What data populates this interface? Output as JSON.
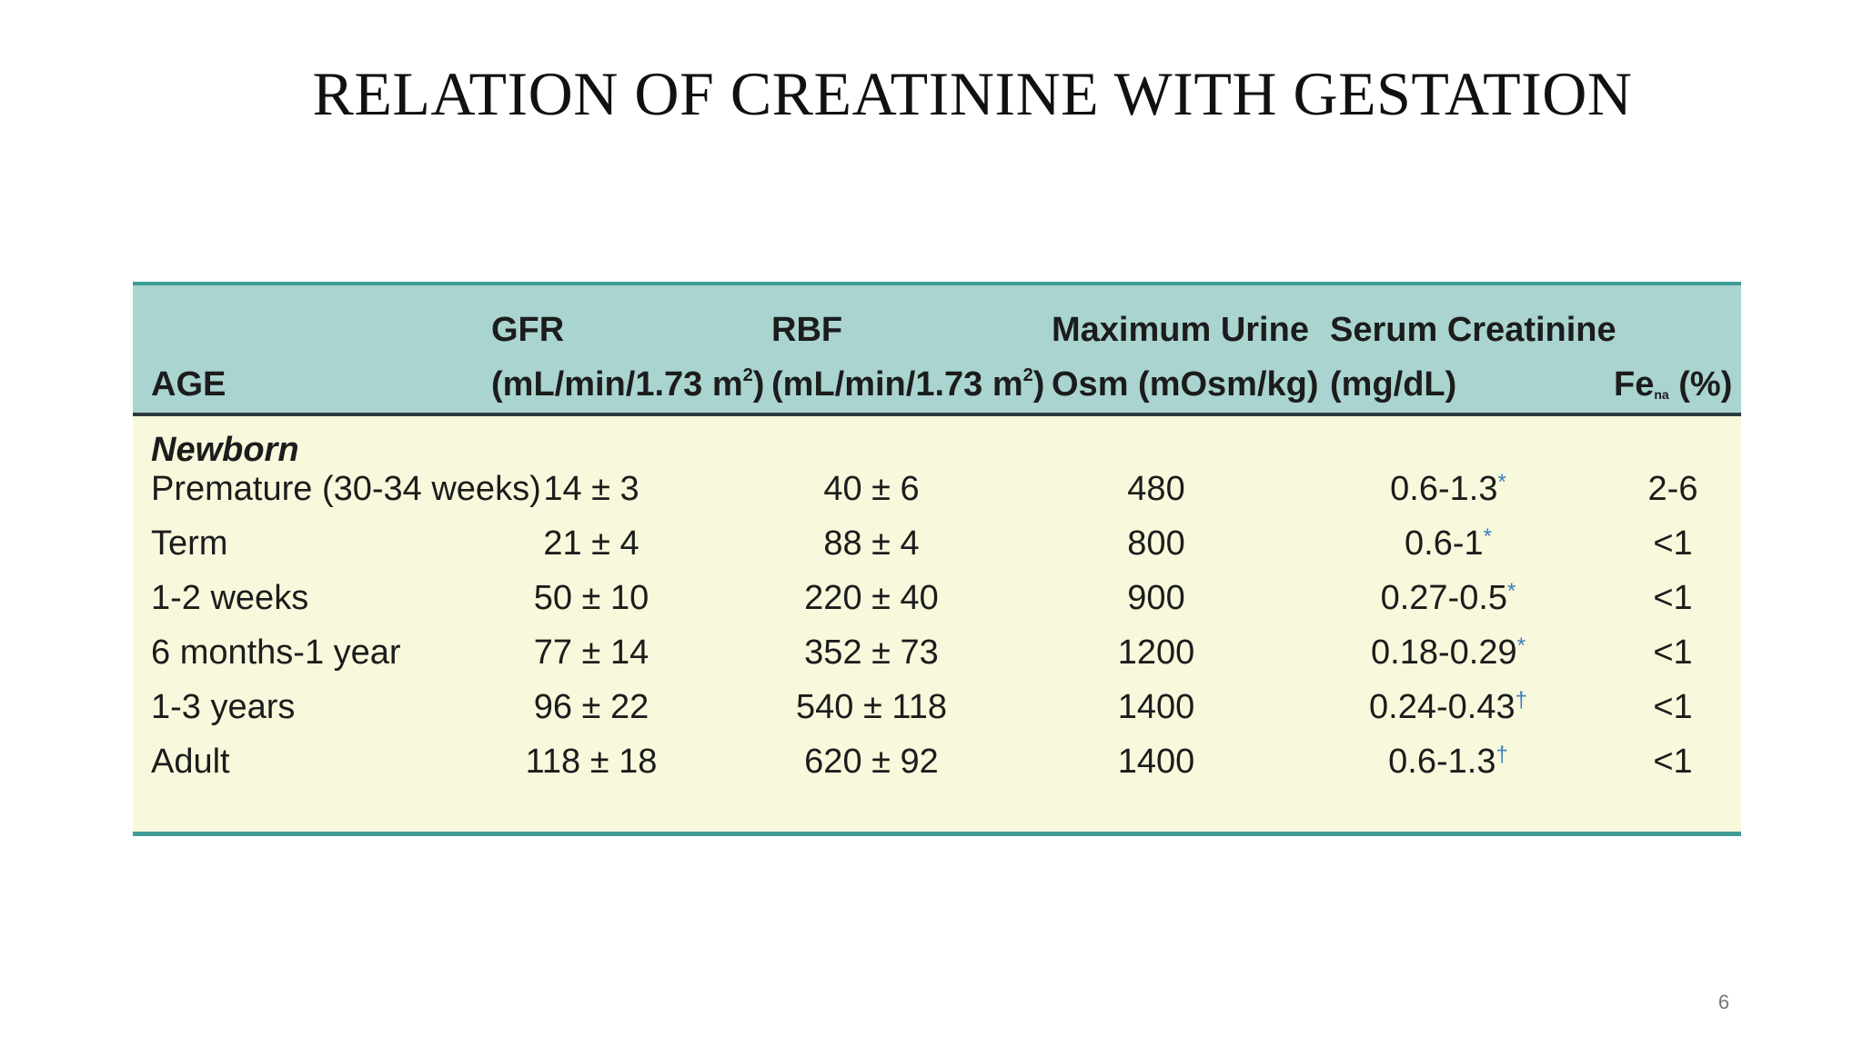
{
  "slide": {
    "title": "RELATION OF CREATININE WITH GESTATION",
    "page_number": "6"
  },
  "table": {
    "headers": {
      "age": "AGE",
      "gfr_line1": "GFR",
      "gfr_line2": "(mL/min/1.73 m",
      "gfr_sup": "2",
      "gfr_close": ")",
      "rbf_line1": "RBF",
      "rbf_line2": "(mL/min/1.73 m",
      "rbf_sup": "2",
      "rbf_close": ")",
      "urine_line1": "Maximum Urine",
      "urine_line2": "Osm (mOsm/kg)",
      "creat_line1": "Serum Creatinine",
      "creat_line2": "(mg/dL)",
      "fena_main": "Fe",
      "fena_sub": "na",
      "fena_unit": " (%)"
    },
    "group_label": "Newborn",
    "rows": [
      {
        "age": "Premature (30-34 weeks)",
        "gfr": "14 ± 3",
        "rbf": "40 ± 6",
        "urine": "480",
        "creat": "0.6-1.3",
        "mark": "*",
        "fena": "2-6"
      },
      {
        "age": "Term",
        "gfr": "21 ± 4",
        "rbf": "88 ± 4",
        "urine": "800",
        "creat": "0.6-1",
        "mark": "*",
        "fena": "<1"
      },
      {
        "age": "1-2 weeks",
        "gfr": "50 ± 10",
        "rbf": "220 ± 40",
        "urine": "900",
        "creat": "0.27-0.5",
        "mark": "*",
        "fena": "<1"
      },
      {
        "age": "6 months-1 year",
        "gfr": "77 ± 14",
        "rbf": "352 ± 73",
        "urine": "1200",
        "creat": "0.18-0.29",
        "mark": "*",
        "fena": "<1"
      },
      {
        "age": "1-3 years",
        "gfr": "96 ± 22",
        "rbf": "540 ± 118",
        "urine": "1400",
        "creat": "0.24-0.43",
        "mark": "†",
        "fena": "<1"
      },
      {
        "age": "Adult",
        "gfr": "118 ± 18",
        "rbf": "620 ± 92",
        "urine": "1400",
        "creat": "0.6-1.3",
        "mark": "†",
        "fena": "<1"
      }
    ]
  },
  "colors": {
    "header_bg": "#a9d4d0",
    "body_bg": "#f8f8dc",
    "rule": "#3f9c96",
    "footnote_mark": "#3a7fc0"
  }
}
